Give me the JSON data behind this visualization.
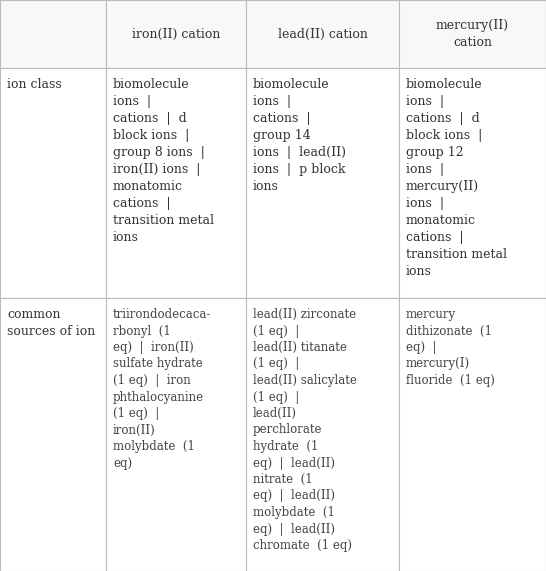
{
  "col_headers": [
    "iron(II) cation",
    "lead(II) cation",
    "mercury(II)\ncation"
  ],
  "row_headers": [
    "ion class",
    "common\nsources of ion"
  ],
  "ion_class_cells": [
    "biomolecule\nions  |\ncations  |  d\nblock ions  |\ngroup 8 ions  |\niron(II) ions  |\nmonatomic\ncations  |\ntransition metal\nions",
    "biomolecule\nions  |\ncations  |\ngroup 14\nions  |  lead(II)\nions  |  p block\nions",
    "biomolecule\nions  |\ncations  |  d\nblock ions  |\ngroup 12\nions  |\nmercury(II)\nions  |\nmonatomic\ncations  |\ntransition metal\nions"
  ],
  "sources_cells": [
    [
      {
        "text": "triirondodecaca-\nrbonyl",
        "color": "#333333",
        "bold": true
      },
      {
        "text": "  (1\neq)  ",
        "color": "#999999",
        "bold": false
      },
      {
        "text": "|  iron(II)\nsulfate hydrate",
        "color": "#333333",
        "bold": true
      },
      {
        "text": "\n(1 eq)  ",
        "color": "#999999",
        "bold": false
      },
      {
        "text": "|  iron\nphthalocyanine",
        "color": "#333333",
        "bold": true
      },
      {
        "text": "\n(1 eq)  ",
        "color": "#999999",
        "bold": false
      },
      {
        "text": "|\niron(II)\nmolybdate",
        "color": "#333333",
        "bold": true
      },
      {
        "text": "  (1\neq)",
        "color": "#999999",
        "bold": false
      }
    ],
    [
      {
        "text": "lead(II) zirconate",
        "color": "#333333",
        "bold": true
      },
      {
        "text": "\n(1 eq)  ",
        "color": "#999999",
        "bold": false
      },
      {
        "text": "|\nlead(II) titanate",
        "color": "#333333",
        "bold": true
      },
      {
        "text": "\n(1 eq)  ",
        "color": "#999999",
        "bold": false
      },
      {
        "text": "|\nlead(II) salicylate",
        "color": "#333333",
        "bold": true
      },
      {
        "text": "\n(1 eq)  ",
        "color": "#999999",
        "bold": false
      },
      {
        "text": "|\nlead(II)\nperchlorate\nhydrate",
        "color": "#333333",
        "bold": true
      },
      {
        "text": "  (1\neq)  ",
        "color": "#999999",
        "bold": false
      },
      {
        "text": "|  lead(II)\nnitrate",
        "color": "#333333",
        "bold": true
      },
      {
        "text": "  (1\neq)  ",
        "color": "#999999",
        "bold": false
      },
      {
        "text": "|  lead(II)\nmolybdate",
        "color": "#333333",
        "bold": true
      },
      {
        "text": "  (1\neq)  ",
        "color": "#999999",
        "bold": false
      },
      {
        "text": "|  lead(II)\nchromate",
        "color": "#333333",
        "bold": true
      },
      {
        "text": "  (1 eq)",
        "color": "#999999",
        "bold": false
      }
    ],
    [
      {
        "text": "mercury\ndithizonate",
        "color": "#333333",
        "bold": true
      },
      {
        "text": "  (1\neq)  ",
        "color": "#999999",
        "bold": false
      },
      {
        "text": "|\nmercury(I)\nfluoride",
        "color": "#333333",
        "bold": true
      },
      {
        "text": "  (1 eq)",
        "color": "#999999",
        "bold": false
      }
    ]
  ],
  "bg_color": "#ffffff",
  "grid_color": "#bbbbbb",
  "header_bg": "#f8f8f8",
  "font_family": "DejaVu Serif",
  "fig_width": 5.46,
  "fig_height": 5.71,
  "dpi": 100
}
